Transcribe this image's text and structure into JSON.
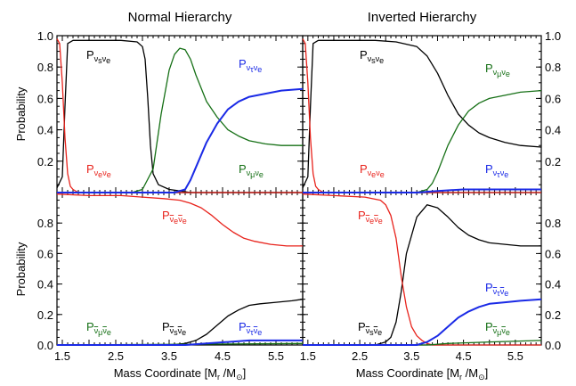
{
  "chart_data": {
    "type": "line",
    "columns": [
      "Normal Hierarchy",
      "Inverted Hierarchy"
    ],
    "ylabel": "Probability",
    "xlabel": "Mass Coordinate [M_r /M_⊙]",
    "xlim": [
      1.4,
      6.0
    ],
    "xticks": [
      "1.5",
      "2.5",
      "3.5",
      "4.5",
      "5.5"
    ],
    "xtick_values": [
      1.5,
      2.5,
      3.5,
      4.5,
      5.5
    ],
    "colors": {
      "black": "#000000",
      "red": "#e8231c",
      "green": "#167016",
      "blue": "#1a2ae6"
    },
    "panels": [
      {
        "id": "normal-neutrino",
        "ylim": [
          0,
          1.0
        ],
        "yticks": [
          "0.2",
          "0.4",
          "0.6",
          "0.8",
          "1.0"
        ],
        "ytick_values": [
          0.2,
          0.4,
          0.6,
          0.8,
          1.0
        ],
        "series": [
          {
            "name": "P_{ν_sν_e}",
            "color": "black",
            "x": [
              1.4,
              1.5,
              1.55,
              1.6,
              1.7,
              1.9,
              2.2,
              2.6,
              2.9,
              3.0,
              3.05,
              3.1,
              3.15,
              3.2,
              3.3,
              3.5,
              3.7,
              3.9,
              6.0
            ],
            "y": [
              0.03,
              0.1,
              0.55,
              0.95,
              0.97,
              0.97,
              0.97,
              0.97,
              0.96,
              0.93,
              0.85,
              0.6,
              0.3,
              0.12,
              0.05,
              0.02,
              0.01,
              0.0,
              0.0
            ]
          },
          {
            "name": "P_{ν_eν_e}",
            "color": "red",
            "x": [
              1.4,
              1.45,
              1.5,
              1.55,
              1.6,
              1.65,
              1.7,
              1.8,
              6.0
            ],
            "y": [
              0.98,
              0.95,
              0.7,
              0.35,
              0.12,
              0.04,
              0.02,
              0.0,
              0.0
            ]
          },
          {
            "name": "P_{ν_μν_e}",
            "color": "green",
            "x": [
              1.4,
              2.8,
              3.0,
              3.2,
              3.35,
              3.5,
              3.6,
              3.7,
              3.8,
              3.9,
              4.0,
              4.2,
              4.4,
              4.6,
              4.8,
              5.0,
              5.3,
              5.6,
              6.0
            ],
            "y": [
              0.0,
              0.0,
              0.02,
              0.15,
              0.5,
              0.78,
              0.88,
              0.92,
              0.91,
              0.85,
              0.75,
              0.58,
              0.48,
              0.4,
              0.36,
              0.33,
              0.31,
              0.3,
              0.3
            ]
          },
          {
            "name": "P_{ν_τν_e}",
            "color": "blue",
            "x": [
              1.4,
              3.6,
              3.7,
              3.8,
              3.9,
              4.0,
              4.2,
              4.4,
              4.6,
              4.8,
              5.0,
              5.3,
              5.6,
              6.0
            ],
            "y": [
              0.0,
              0.0,
              0.01,
              0.02,
              0.08,
              0.16,
              0.32,
              0.44,
              0.53,
              0.58,
              0.61,
              0.63,
              0.65,
              0.66
            ]
          }
        ]
      },
      {
        "id": "inverted-neutrino",
        "ylim": [
          0,
          1.0
        ],
        "yticks": [
          "0.2",
          "0.4",
          "0.6",
          "0.8",
          "1.0"
        ],
        "ytick_values": [
          0.2,
          0.4,
          0.6,
          0.8,
          1.0
        ],
        "series": [
          {
            "name": "P_{ν_sν_e}",
            "color": "black",
            "x": [
              1.4,
              1.5,
              1.55,
              1.6,
              1.7,
              2.2,
              2.8,
              3.2,
              3.6,
              3.8,
              4.0,
              4.2,
              4.4,
              4.6,
              4.8,
              5.0,
              5.3,
              5.6,
              6.0
            ],
            "y": [
              0.03,
              0.1,
              0.55,
              0.95,
              0.97,
              0.97,
              0.97,
              0.96,
              0.93,
              0.87,
              0.76,
              0.62,
              0.5,
              0.43,
              0.38,
              0.35,
              0.32,
              0.3,
              0.29
            ]
          },
          {
            "name": "P_{ν_eν_e}",
            "color": "red",
            "x": [
              1.4,
              1.45,
              1.5,
              1.55,
              1.6,
              1.65,
              1.7,
              1.8,
              6.0
            ],
            "y": [
              0.98,
              0.95,
              0.7,
              0.35,
              0.12,
              0.04,
              0.02,
              0.0,
              0.0
            ]
          },
          {
            "name": "P_{ν_μν_e}",
            "color": "green",
            "x": [
              1.4,
              3.6,
              3.8,
              3.9,
              4.0,
              4.2,
              4.4,
              4.6,
              4.8,
              5.0,
              5.3,
              5.6,
              6.0
            ],
            "y": [
              0.0,
              0.0,
              0.02,
              0.06,
              0.13,
              0.3,
              0.43,
              0.52,
              0.57,
              0.6,
              0.62,
              0.64,
              0.65
            ]
          },
          {
            "name": "P_{ν_τν_e}",
            "color": "blue",
            "x": [
              1.4,
              3.6,
              4.0,
              4.5,
              5.0,
              6.0
            ],
            "y": [
              0.0,
              0.0,
              0.01,
              0.02,
              0.02,
              0.02
            ]
          }
        ]
      },
      {
        "id": "normal-antineutrino",
        "ylim": [
          0,
          1.0
        ],
        "yticks": [
          "0.0",
          "0.2",
          "0.4",
          "0.6",
          "0.8"
        ],
        "ytick_values": [
          0.0,
          0.2,
          0.4,
          0.6,
          0.8
        ],
        "series": [
          {
            "name": "P_{ν̅_sν̅_e}",
            "color": "black",
            "x": [
              1.4,
              3.5,
              3.8,
              4.0,
              4.2,
              4.4,
              4.6,
              4.8,
              5.0,
              5.2,
              5.5,
              5.8,
              6.0
            ],
            "y": [
              0.0,
              0.0,
              0.01,
              0.03,
              0.07,
              0.13,
              0.19,
              0.23,
              0.26,
              0.27,
              0.28,
              0.29,
              0.3
            ]
          },
          {
            "name": "P_{ν̅_eν̅_e}",
            "color": "red",
            "x": [
              1.4,
              2.0,
              2.6,
              3.0,
              3.4,
              3.7,
              3.9,
              4.1,
              4.3,
              4.5,
              4.7,
              4.9,
              5.1,
              5.4,
              5.7,
              6.0
            ],
            "y": [
              0.99,
              0.98,
              0.98,
              0.97,
              0.96,
              0.95,
              0.93,
              0.9,
              0.85,
              0.79,
              0.74,
              0.7,
              0.68,
              0.66,
              0.65,
              0.65
            ]
          },
          {
            "name": "P_{ν̅_μν̅_e}",
            "color": "green",
            "x": [
              1.4,
              1.6,
              6.0
            ],
            "y": [
              0.0,
              0.0,
              0.01
            ]
          },
          {
            "name": "P_{ν̅_τν̅_e}",
            "color": "blue",
            "x": [
              1.4,
              3.8,
              4.2,
              4.6,
              5.0,
              6.0
            ],
            "y": [
              0.0,
              0.0,
              0.01,
              0.02,
              0.03,
              0.03
            ]
          }
        ]
      },
      {
        "id": "inverted-antineutrino",
        "ylim": [
          0,
          1.0
        ],
        "yticks": [
          "0.0",
          "0.2",
          "0.4",
          "0.6",
          "0.8"
        ],
        "ytick_values": [
          0.0,
          0.2,
          0.4,
          0.6,
          0.8
        ],
        "series": [
          {
            "name": "P_{ν̅_sν̅_e}",
            "color": "black",
            "x": [
              1.4,
              2.8,
              3.0,
              3.1,
              3.2,
              3.3,
              3.4,
              3.6,
              3.8,
              4.0,
              4.2,
              4.4,
              4.6,
              4.8,
              5.0,
              5.3,
              5.6,
              6.0
            ],
            "y": [
              0.0,
              0.0,
              0.02,
              0.05,
              0.15,
              0.35,
              0.6,
              0.84,
              0.92,
              0.9,
              0.84,
              0.77,
              0.72,
              0.69,
              0.67,
              0.66,
              0.65,
              0.65
            ]
          },
          {
            "name": "P_{ν̅_eν̅_e}",
            "color": "red",
            "x": [
              1.4,
              2.0,
              2.6,
              2.9,
              3.0,
              3.1,
              3.2,
              3.3,
              3.4,
              3.5,
              3.6,
              3.7,
              3.8,
              3.9,
              6.0
            ],
            "y": [
              0.99,
              0.98,
              0.97,
              0.95,
              0.92,
              0.85,
              0.7,
              0.45,
              0.25,
              0.12,
              0.06,
              0.03,
              0.01,
              0.0,
              0.0
            ]
          },
          {
            "name": "P_{ν̅_μν̅_e}",
            "color": "green",
            "x": [
              1.4,
              3.8,
              4.2,
              5.0,
              6.0
            ],
            "y": [
              0.0,
              0.0,
              0.01,
              0.02,
              0.03
            ]
          },
          {
            "name": "P_{ν̅_τν̅_e}",
            "color": "blue",
            "x": [
              1.4,
              3.6,
              3.8,
              4.0,
              4.2,
              4.4,
              4.6,
              4.8,
              5.0,
              5.3,
              5.6,
              6.0
            ],
            "y": [
              0.0,
              0.0,
              0.02,
              0.06,
              0.12,
              0.18,
              0.22,
              0.25,
              0.27,
              0.28,
              0.29,
              0.3
            ]
          }
        ]
      }
    ]
  }
}
